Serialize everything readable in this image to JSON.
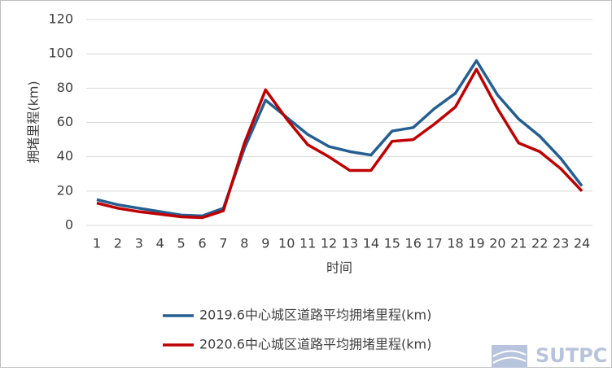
{
  "chart_data": {
    "type": "line",
    "y_label": "拥堵里程(km)",
    "x_label": "时间",
    "categories": [
      "1",
      "2",
      "3",
      "4",
      "5",
      "6",
      "7",
      "8",
      "9",
      "10",
      "11",
      "12",
      "13",
      "14",
      "15",
      "16",
      "17",
      "18",
      "19",
      "20",
      "21",
      "22",
      "23",
      "24"
    ],
    "series": [
      {
        "name": "2019.6中心城区道路平均拥堵里程(km)",
        "color": "#255e91",
        "values": [
          15,
          12,
          10,
          8,
          6,
          5.5,
          10,
          45,
          73,
          63,
          53,
          46,
          43,
          41,
          55,
          57,
          68,
          77,
          96,
          76,
          62,
          52,
          39,
          23
        ]
      },
      {
        "name": "2020.6中心城区道路平均拥堵里程(km)",
        "color": "#c00000",
        "values": [
          13,
          10,
          8,
          6.5,
          5,
          4.5,
          8.5,
          48,
          79,
          62,
          47,
          40,
          32,
          32,
          49,
          50,
          59,
          69,
          91,
          68,
          48,
          43,
          33,
          20
        ]
      }
    ],
    "ylim": [
      0,
      120
    ],
    "yticks": [
      0,
      20,
      40,
      60,
      80,
      100,
      120
    ],
    "grid": true,
    "legend": "bottom",
    "watermark": "SUTPC"
  }
}
